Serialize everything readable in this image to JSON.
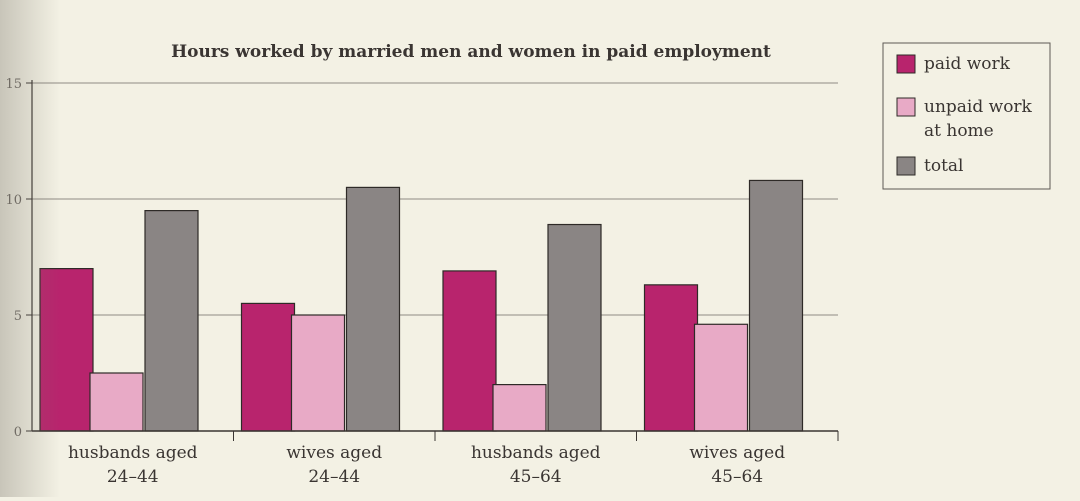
{
  "chart_data": {
    "type": "bar",
    "title": "Hours worked by married men and women in paid employment",
    "xlabel": "",
    "ylabel": "",
    "ylim": [
      0,
      15
    ],
    "yticks": [
      "0",
      "5",
      "10",
      "15"
    ],
    "grid": true,
    "legend_position": "top-right",
    "categories": [
      [
        "husbands aged",
        "24–44"
      ],
      [
        "wives aged",
        "24–44"
      ],
      [
        "husbands aged",
        "45–64"
      ],
      [
        "wives aged",
        "45–64"
      ]
    ],
    "series": [
      {
        "name": "paid work",
        "legend_lines": [
          "paid work"
        ],
        "color": "#b8246d",
        "values": [
          7.0,
          5.5,
          6.9,
          6.3
        ]
      },
      {
        "name": "unpaid work at home",
        "legend_lines": [
          "unpaid work",
          "at home"
        ],
        "color": "#e8aac6",
        "values": [
          2.5,
          5.0,
          2.0,
          4.6
        ]
      },
      {
        "name": "total",
        "legend_lines": [
          "total"
        ],
        "color": "#8a8584",
        "values": [
          9.5,
          10.5,
          8.9,
          10.8
        ]
      }
    ]
  }
}
